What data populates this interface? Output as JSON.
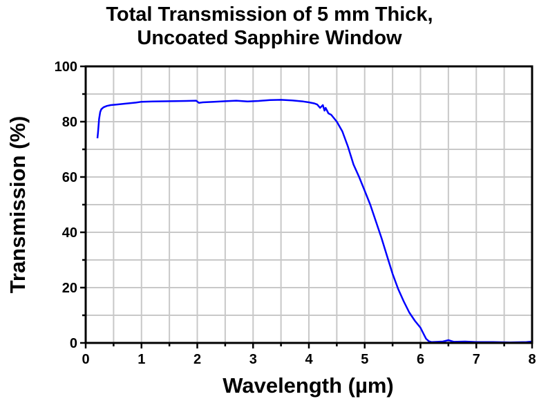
{
  "chart_data": {
    "type": "line",
    "title_lines": [
      "Total Transmission of 5 mm Thick,",
      "Uncoated Sapphire Window"
    ],
    "xlabel": "Wavelength (µm)",
    "ylabel": "Transmission (%)",
    "xlim": [
      0,
      8
    ],
    "ylim": [
      0,
      100
    ],
    "xticks": [
      0,
      1,
      2,
      3,
      4,
      5,
      6,
      7,
      8
    ],
    "yticks": [
      0,
      20,
      40,
      60,
      80,
      100
    ],
    "grid": true,
    "grid_x_step": 0.5,
    "grid_y_step": 10,
    "legend": "none",
    "series": [
      {
        "name": "Transmission",
        "color": "#0000ff",
        "x": [
          0.21,
          0.22,
          0.24,
          0.26,
          0.28,
          0.32,
          0.38,
          0.45,
          0.55,
          0.7,
          0.9,
          1.0,
          1.2,
          1.5,
          1.8,
          1.98,
          2.03,
          2.1,
          2.3,
          2.5,
          2.7,
          2.9,
          3.1,
          3.3,
          3.5,
          3.7,
          3.9,
          4.0,
          4.1,
          4.15,
          4.2,
          4.25,
          4.28,
          4.3,
          4.35,
          4.4,
          4.5,
          4.6,
          4.7,
          4.8,
          4.9,
          5.0,
          5.1,
          5.2,
          5.3,
          5.4,
          5.5,
          5.6,
          5.7,
          5.8,
          5.9,
          6.0,
          6.05,
          6.1,
          6.15,
          6.2,
          6.4,
          6.5,
          6.6,
          6.8,
          7.0,
          7.3,
          7.6,
          7.9,
          8.0
        ],
        "y": [
          74,
          76,
          81,
          83.5,
          84.5,
          85.2,
          85.7,
          86,
          86.2,
          86.5,
          86.9,
          87.2,
          87.3,
          87.4,
          87.5,
          87.6,
          86.8,
          87,
          87.2,
          87.4,
          87.6,
          87.3,
          87.5,
          87.8,
          87.9,
          87.7,
          87.3,
          87,
          86.6,
          86.2,
          85,
          86,
          84,
          85,
          83,
          82.5,
          80,
          76.5,
          71,
          64.5,
          60,
          55,
          50,
          44,
          38,
          31.5,
          25,
          19.5,
          15,
          11,
          8,
          5.5,
          3.5,
          1.5,
          0.6,
          0.3,
          0.5,
          1,
          0.4,
          0.5,
          0.3,
          0.3,
          0.2,
          0.3,
          0.5
        ]
      }
    ]
  }
}
